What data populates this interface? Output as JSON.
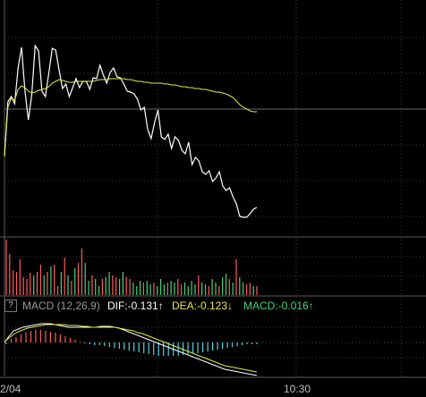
{
  "chart_data": [
    {
      "type": "line",
      "panel": "price",
      "series": [
        {
          "color": "#ffffff",
          "values": [
            175,
            114,
            108,
            116,
            76,
            53,
            102,
            134,
            106,
            51,
            57,
            102,
            108,
            82,
            54,
            56,
            78,
            99,
            94,
            108,
            98,
            88,
            98,
            91,
            91,
            100,
            87,
            88,
            73,
            84,
            93,
            81,
            76,
            86,
            87,
            94,
            102,
            103,
            105,
            111,
            123,
            120,
            145,
            155,
            137,
            123,
            153,
            156,
            150,
            166,
            153,
            157,
            168,
            172,
            159,
            184,
            176,
            180,
            192,
            195,
            191,
            203,
            199,
            192,
            208,
            213,
            210,
            220,
            228,
            242,
            243,
            243,
            239,
            234,
            232
          ]
        },
        {
          "color": "#e6e64b",
          "values": [
            175,
            120,
            110,
            112,
            100,
            96,
            98,
            102,
            104,
            103,
            101,
            100,
            99,
            97,
            93,
            91,
            89,
            90,
            91,
            92,
            92,
            91,
            91,
            91,
            91,
            91,
            91,
            90,
            89,
            89,
            89,
            88,
            88,
            88,
            88,
            88,
            89,
            89,
            90,
            91,
            91,
            92,
            92,
            93,
            93,
            93,
            93,
            94,
            94,
            95,
            95,
            96,
            97,
            97,
            98,
            98,
            99,
            99,
            100,
            100,
            101,
            102,
            103,
            103,
            104,
            105,
            107,
            109,
            113,
            117,
            120,
            122,
            124,
            125,
            125
          ]
        }
      ]
    },
    {
      "type": "bar",
      "panel": "volume",
      "values": [
        62,
        46,
        28,
        26,
        40,
        20,
        18,
        25,
        22,
        26,
        34,
        22,
        26,
        32,
        34,
        10,
        26,
        42,
        22,
        16,
        30,
        36,
        52,
        36,
        16,
        22,
        18,
        10,
        18,
        20,
        26,
        22,
        20,
        18,
        26,
        20,
        18,
        14,
        10,
        16,
        14,
        16,
        12,
        14,
        10,
        18,
        12,
        14,
        16,
        14,
        18,
        12,
        14,
        10,
        16,
        12,
        22,
        14,
        12,
        10,
        18,
        14,
        10,
        20,
        24,
        18,
        14,
        40,
        20,
        14,
        12,
        14,
        10,
        10
      ],
      "colors": [
        "#ff5c5c",
        "#ff5c5c",
        "#ff5c5c",
        "#ff5c5c",
        "#ff5c5c",
        "#ff5c5c",
        "#ff5c5c",
        "#ff5c5c",
        "#49d07a",
        "#ff5c5c",
        "#ff5c5c",
        "#49d07a",
        "#ff5c5c",
        "#49d07a",
        "#ff5c5c",
        "#ff5c5c",
        "#49d07a",
        "#ff5c5c",
        "#49d07a",
        "#ff5c5c",
        "#49d07a",
        "#ff5c5c",
        "#ff5c5c",
        "#49d07a",
        "#49d07a",
        "#ff5c5c",
        "#49d07a",
        "#49d07a",
        "#ff5c5c",
        "#49d07a",
        "#49d07a",
        "#ff5c5c",
        "#ff5c5c",
        "#49d07a",
        "#49d07a",
        "#ff5c5c",
        "#ff5c5c",
        "#49d07a",
        "#49d07a",
        "#49d07a",
        "#ff5c5c",
        "#49d07a",
        "#49d07a",
        "#ff5c5c",
        "#49d07a",
        "#49d07a",
        "#49d07a",
        "#ff5c5c",
        "#49d07a",
        "#49d07a",
        "#ff5c5c",
        "#ff5c5c",
        "#49d07a",
        "#49d07a",
        "#49d07a",
        "#49d07a",
        "#ff5c5c",
        "#49d07a",
        "#49d07a",
        "#ff5c5c",
        "#49d07a",
        "#49d07a",
        "#ff5c5c",
        "#49d07a",
        "#49d07a",
        "#ff5c5c",
        "#49d07a",
        "#ff5c5c",
        "#49d07a",
        "#49d07a",
        "#ff5c5c",
        "#ff5c5c",
        "#49d07a",
        "#ff5c5c"
      ]
    },
    {
      "type": "line",
      "panel": "macd",
      "title": "MACD (12,26,9)",
      "labels": {
        "dif": "DIF:-0.131↑",
        "dea": "DEA:-0.123↓",
        "macd": "MACD:-0.016↑"
      },
      "series": [
        {
          "color": "#ffffff",
          "values": [
            383,
            376,
            370,
            368,
            366,
            365,
            364,
            363,
            362,
            362,
            362,
            363,
            364,
            365,
            366,
            366,
            366,
            366,
            366,
            366,
            366,
            365,
            365,
            365,
            366,
            367,
            369,
            371,
            373,
            375,
            377,
            379,
            381,
            383,
            385,
            387,
            389,
            391,
            393,
            395,
            397,
            399,
            401,
            403,
            405,
            407,
            409,
            411,
            413,
            414,
            415,
            416,
            417,
            418,
            419,
            420
          ]
        },
        {
          "color": "#e6e64b",
          "values": [
            382,
            378,
            374,
            371,
            369,
            367,
            366,
            365,
            364,
            363,
            363,
            363,
            363,
            363,
            364,
            364,
            364,
            365,
            365,
            366,
            366,
            366,
            366,
            366,
            366,
            367,
            368,
            369,
            370,
            372,
            373,
            375,
            377,
            379,
            381,
            383,
            385,
            387,
            389,
            391,
            393,
            395,
            397,
            399,
            401,
            403,
            405,
            407,
            409,
            410,
            411,
            412,
            413,
            414,
            415,
            416
          ]
        }
      ],
      "histogram": [
        -2,
        4,
        6,
        9,
        11,
        13,
        14,
        14,
        13,
        12,
        11,
        9,
        7,
        5,
        3,
        1,
        -1,
        -2,
        -3,
        -3,
        -4,
        -5,
        -6,
        -7,
        -8,
        -9,
        -10,
        -11,
        -12,
        -13,
        -14,
        -15,
        -15,
        -15,
        -15,
        -15,
        -14,
        -13,
        -12,
        -12,
        -11,
        -10,
        -9,
        -8,
        -7,
        -6,
        -5,
        -4,
        -3,
        -2,
        -2,
        -2
      ]
    }
  ],
  "x_axis": {
    "start_label": "2/04",
    "mid_label": "10:30"
  },
  "ui": {
    "help_label": "?"
  }
}
